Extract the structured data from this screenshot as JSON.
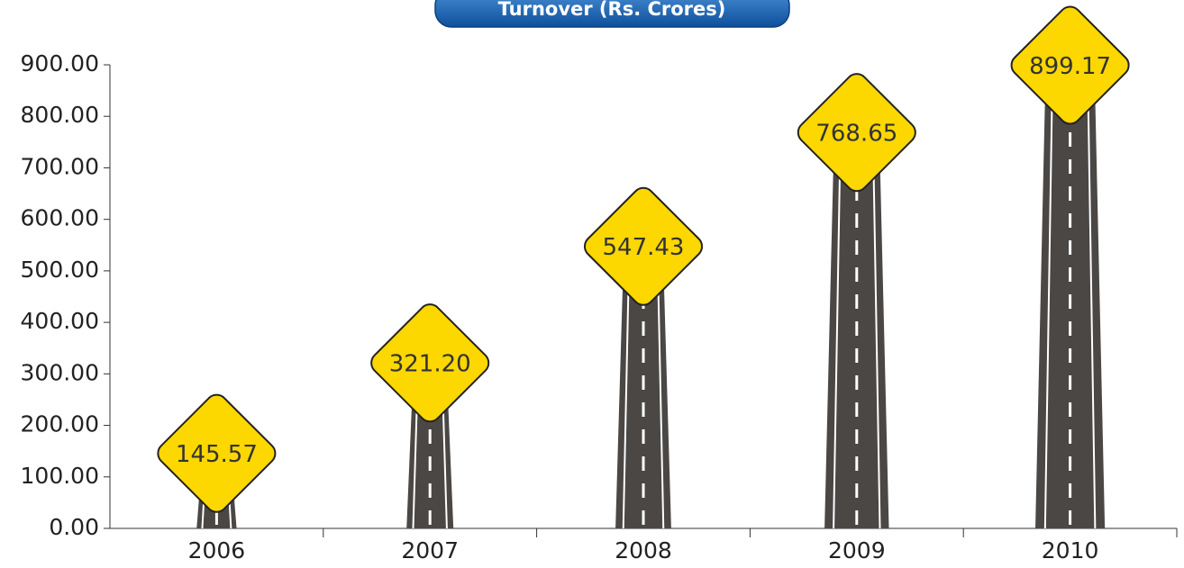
{
  "chart_data": {
    "type": "bar",
    "title": "Turnover (Rs. Crores)",
    "categories": [
      "2006",
      "2007",
      "2008",
      "2009",
      "2010"
    ],
    "values": [
      145.57,
      321.2,
      547.43,
      768.65,
      899.17
    ],
    "value_labels": [
      "145.57",
      "321.20",
      "547.43",
      "768.65",
      "899.17"
    ],
    "color": "#4a4745",
    "label_color": "#fcd700",
    "ylim": [
      0,
      900
    ],
    "yticks": [
      {
        "value": 0,
        "label": "0.00"
      },
      {
        "value": 100,
        "label": "100.00"
      },
      {
        "value": 200,
        "label": "200.00"
      },
      {
        "value": 300,
        "label": "300.00"
      },
      {
        "value": 400,
        "label": "400.00"
      },
      {
        "value": 500,
        "label": "500.00"
      },
      {
        "value": 600,
        "label": "600.00"
      },
      {
        "value": 700,
        "label": "700.00"
      },
      {
        "value": 800,
        "label": "800.00"
      },
      {
        "value": 900,
        "label": "900.00"
      }
    ]
  }
}
